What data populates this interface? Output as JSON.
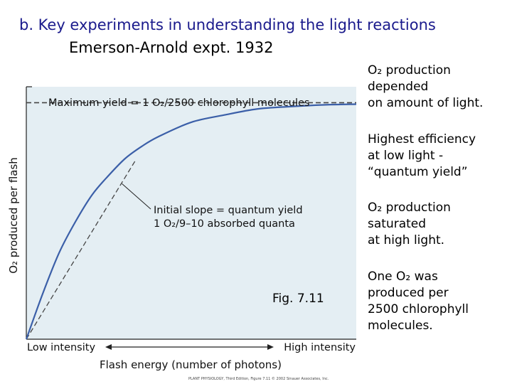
{
  "slide": {
    "title": "b. Key experiments in understanding the light reactions",
    "subtitle": "Emerson-Arnold expt. 1932",
    "fig_label": "Fig. 7.11"
  },
  "notes": [
    "O₂ production\ndepended\non amount of light.",
    "Highest efficiency\nat low light -\n“quantum yield”",
    "O₂ production\nsaturated\nat high light.",
    "One O₂ was\nproduced per\n2500 chlorophyll\nmolecules."
  ],
  "colors": {
    "plot_bg": "#e4eef3",
    "curve": "#3b5fa8",
    "dashed": "#444444",
    "axis_text": "#111111",
    "title": "#1a1a8c"
  },
  "chart_data": {
    "type": "line",
    "xlabel": "Flash energy (number of photons)",
    "ylabel": "O₂ produced per flash",
    "x_tick_labels": {
      "low": "Low intensity",
      "high": "High intensity"
    },
    "annotations": {
      "max_yield": "Maximum yield = 1 O₂/2500 chlorophyll molecules",
      "slope_line1": "Initial slope = quantum yield",
      "slope_line2": "1 O₂/9–10 absorbed quanta"
    },
    "credit": "PLANT PHYSIOLOGY, Third Edition, Figure 7.11 © 2002 Sinauer Associates, Inc.",
    "xlim": [
      0,
      1
    ],
    "ylim": [
      0,
      1
    ],
    "grid": false,
    "legend": "none",
    "series": [
      {
        "x": [
          0,
          0.05,
          0.1,
          0.15,
          0.2,
          0.25,
          0.3,
          0.35,
          0.4,
          0.5,
          0.6,
          0.7,
          0.8,
          0.9,
          1.0
        ],
        "y": [
          0,
          0.19,
          0.36,
          0.49,
          0.6,
          0.68,
          0.75,
          0.8,
          0.84,
          0.9,
          0.93,
          0.955,
          0.965,
          0.972,
          0.975
        ]
      }
    ],
    "initial_slope_line": {
      "x": [
        0,
        0.33
      ],
      "y": [
        0,
        0.74
      ]
    },
    "max_yield_level": 0.975
  }
}
